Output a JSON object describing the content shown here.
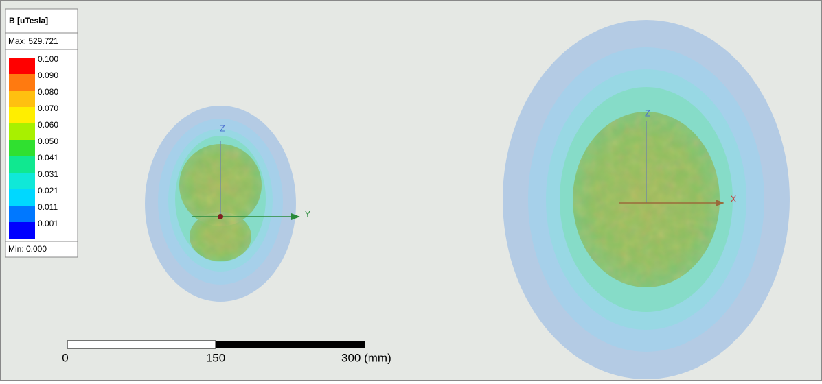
{
  "legend": {
    "title": "B [uTesla]",
    "max": "Max: 529.721",
    "min": "Min: 0.000",
    "levels": [
      {
        "label": "0.100",
        "color": "#ff0000"
      },
      {
        "label": "0.090",
        "color": "#ff7a10"
      },
      {
        "label": "0.080",
        "color": "#ffc010"
      },
      {
        "label": "0.070",
        "color": "#ffee00"
      },
      {
        "label": "0.060",
        "color": "#a8f000"
      },
      {
        "label": "0.050",
        "color": "#30e030"
      },
      {
        "label": "0.041",
        "color": "#10e890"
      },
      {
        "label": "0.031",
        "color": "#10e8d8"
      },
      {
        "label": "0.021",
        "color": "#00d8ff"
      },
      {
        "label": "0.011",
        "color": "#0078ff"
      },
      {
        "label": "0.001",
        "color": "#0000ff"
      }
    ]
  },
  "views": {
    "left": {
      "axes": [
        "Z",
        "Y"
      ]
    },
    "right": {
      "axes": [
        "Z",
        "X"
      ]
    }
  },
  "scale_bar": {
    "labels": [
      "0",
      "150",
      "300 (mm)"
    ]
  }
}
